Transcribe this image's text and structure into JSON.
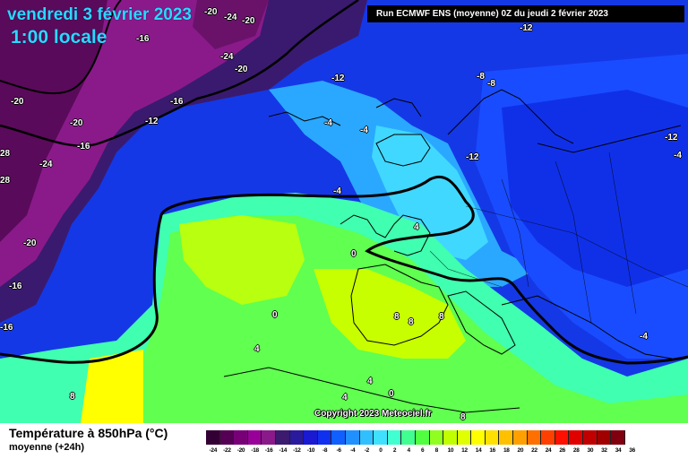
{
  "header": {
    "date": "vendredi 3 février 2023",
    "time": "1:00 locale",
    "run": "Run ECMWF ENS (moyenne) 0Z du jeudi 2 février 2023"
  },
  "copyright": "Copyright 2023 Meteociel.fr",
  "legend": {
    "title": "Température à 850hPa (°C)",
    "subtitle": "moyenne  (+24h)",
    "colors": [
      "#330033",
      "#550055",
      "#770077",
      "#990099",
      "#8a1a8a",
      "#3c1a6e",
      "#2a1a9e",
      "#1a1ad0",
      "#1030f0",
      "#1060ff",
      "#2090ff",
      "#30c0ff",
      "#40e0ff",
      "#40ffd0",
      "#40ff90",
      "#50ff40",
      "#90ff20",
      "#c0ff00",
      "#e0ff00",
      "#ffff00",
      "#ffe000",
      "#ffc000",
      "#ffa000",
      "#ff7000",
      "#ff4000",
      "#ff1000",
      "#e00000",
      "#c00000",
      "#a00000",
      "#800010",
      "#600020",
      "#3a0018",
      "#000000"
    ],
    "ticks": [
      "-24",
      "-22",
      "-20",
      "-18",
      "-16",
      "-14",
      "-12",
      "-10",
      "-8",
      "-6",
      "-4",
      "-2",
      "0",
      "2",
      "4",
      "6",
      "8",
      "10",
      "12",
      "14",
      "16",
      "18",
      "20",
      "22",
      "24",
      "26",
      "28",
      "30",
      "32",
      "34",
      "36"
    ]
  },
  "contour_labels": [
    {
      "text": "-20",
      "name": "label-m20-a"
    },
    {
      "text": "-24",
      "name": "label-m24-a"
    },
    {
      "text": "-20",
      "name": "label-m20-b"
    },
    {
      "text": "-16",
      "name": "label-m16-a"
    },
    {
      "text": "-24",
      "name": "label-m24-b"
    },
    {
      "text": "-20",
      "name": "label-m20-c"
    },
    {
      "text": "-16",
      "name": "label-m16-b"
    },
    {
      "text": "-12",
      "name": "label-m12-a"
    },
    {
      "text": "-8",
      "name": "label-m8-a"
    },
    {
      "text": "-8",
      "name": "label-m8-b"
    },
    {
      "text": "-20",
      "name": "label-m20-d"
    },
    {
      "text": "-16",
      "name": "label-m16-c"
    },
    {
      "text": "-12",
      "name": "label-m12-b"
    },
    {
      "text": "-20",
      "name": "label-m20-e"
    },
    {
      "text": "-16",
      "name": "label-m16-d"
    },
    {
      "text": "28",
      "name": "label-28-a"
    },
    {
      "text": "-24",
      "name": "label-m24-c"
    },
    {
      "text": "28",
      "name": "label-28-b"
    },
    {
      "text": "-4",
      "name": "label-m4-a"
    },
    {
      "text": "-4",
      "name": "label-m4-b"
    },
    {
      "text": "-4",
      "name": "label-m4-c"
    },
    {
      "text": "-12",
      "name": "label-m12-c"
    },
    {
      "text": "-12",
      "name": "label-m12-d"
    },
    {
      "text": "-12",
      "name": "label-m12-e"
    },
    {
      "text": "-4",
      "name": "label-m4-d"
    },
    {
      "text": "-20",
      "name": "label-m20-f"
    },
    {
      "text": "4",
      "name": "label-4-a"
    },
    {
      "text": "0",
      "name": "label-0-a"
    },
    {
      "text": "-16",
      "name": "label-m16-e"
    },
    {
      "text": "0",
      "name": "label-0-b"
    },
    {
      "text": "8",
      "name": "label-8-a"
    },
    {
      "text": "8",
      "name": "label-8-b"
    },
    {
      "text": "8",
      "name": "label-8-c"
    },
    {
      "text": "-4",
      "name": "label-m4-e"
    },
    {
      "text": "4",
      "name": "label-4-b"
    },
    {
      "text": "4",
      "name": "label-4-c"
    },
    {
      "text": "4",
      "name": "label-4-d"
    },
    {
      "text": "0",
      "name": "label-0-c"
    },
    {
      "text": "8",
      "name": "label-8-d"
    },
    {
      "text": "8",
      "name": "label-8-e"
    }
  ]
}
